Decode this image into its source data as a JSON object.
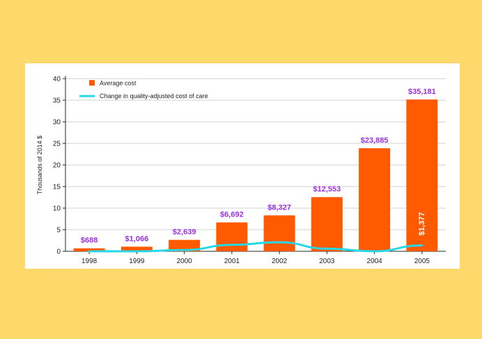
{
  "chart_data": {
    "type": "bar",
    "categories": [
      "1998",
      "1999",
      "2000",
      "2001",
      "2002",
      "2003",
      "2004",
      "2005"
    ],
    "series": [
      {
        "name": "Average cost",
        "type": "bar",
        "color": "#ff5a00",
        "values": [
          0.688,
          1.066,
          2.639,
          6.692,
          8.327,
          12.553,
          23.885,
          35.181
        ],
        "labels": [
          "$688",
          "$1,066",
          "$2,639",
          "$6,692",
          "$8,327",
          "$12,553",
          "$23,885",
          "$35,181"
        ]
      },
      {
        "name": "Change in quality-adjusted cost of care",
        "type": "line",
        "color": "#28d7e6",
        "values": [
          0.0,
          0.0,
          0.3,
          1.5,
          2.1,
          0.6,
          0.0,
          1.377
        ],
        "labels": [
          "",
          "",
          "",
          "",
          "",
          "",
          "",
          "$1,377"
        ]
      }
    ],
    "ylabel": "Thousands of 2014 $",
    "ylim": [
      0,
      40
    ],
    "yticks": [
      0,
      5,
      10,
      15,
      20,
      25,
      30,
      35,
      40
    ],
    "grid": true,
    "legend_position": "top-left"
  }
}
